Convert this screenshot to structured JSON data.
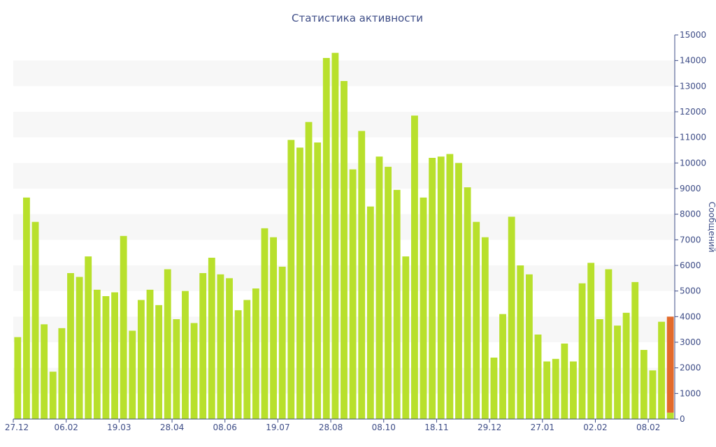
{
  "chart_data": {
    "type": "bar",
    "title": "Статистика активности",
    "ylabel": "Сообщений",
    "ylim": [
      0,
      15000
    ],
    "y_ticks": [
      0,
      1000,
      2000,
      3000,
      4000,
      5000,
      6000,
      7000,
      8000,
      9000,
      10000,
      11000,
      12000,
      13000,
      14000,
      15000
    ],
    "x_tick_labels": [
      "27.12",
      "06.02",
      "19.03",
      "28.04",
      "08.06",
      "19.07",
      "28.08",
      "08.10",
      "18.11",
      "29.12",
      "27.01",
      "02.02",
      "08.02"
    ],
    "grid": "alternating horizontal bands",
    "colors": {
      "bar": "#b8e02c",
      "current": "#e36a2b",
      "axis": "#3e4d87",
      "band": "#f7f7f7"
    },
    "series": [
      {
        "values": [
          3200,
          8650,
          7700,
          3700,
          1850,
          3550,
          5700,
          5550,
          6350,
          5050,
          4800,
          4950,
          7150,
          3450,
          4650,
          5050,
          4450,
          5850,
          3900,
          5000,
          3750,
          5700,
          6300,
          5650,
          5500,
          4250,
          4650,
          5100,
          7450,
          7100,
          5950,
          10900,
          10600,
          11600,
          10800,
          14100,
          14300,
          13200,
          9750,
          11250,
          8300,
          10250,
          9850,
          8950,
          6350,
          11850,
          8650,
          10200,
          10250,
          10350,
          10000,
          9050,
          7700,
          7100,
          2400,
          4100,
          7900,
          6000,
          5650,
          3300,
          2250,
          2350,
          2950,
          2250,
          5300,
          6100,
          3900,
          5850,
          3650,
          4150,
          5350,
          2700,
          1900,
          3800,
          250
        ],
        "current_segment": 3750
      }
    ]
  }
}
